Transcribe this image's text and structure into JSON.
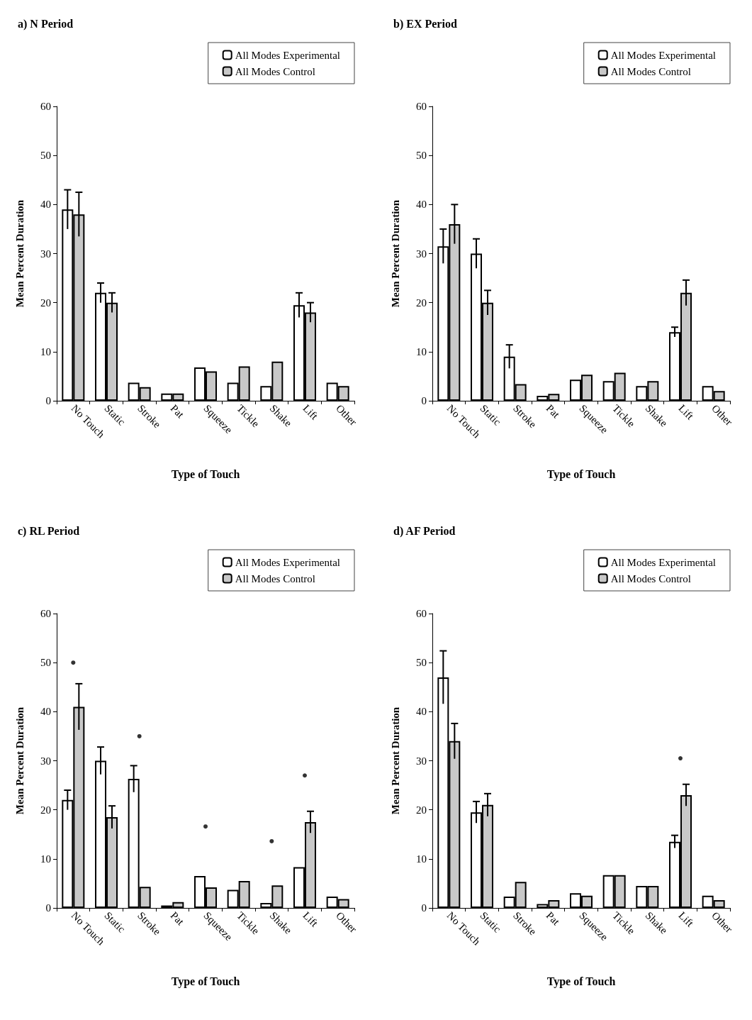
{
  "chart_data": [
    {
      "type": "bar",
      "title": "a) N Period",
      "xlabel": "Type of Touch",
      "ylabel": "Mean Percent Duration",
      "categories": [
        "No Touch",
        "Static",
        "Stroke",
        "Pat",
        "Squeeze",
        "Tickle",
        "Shake",
        "Lift",
        "Other"
      ],
      "series": [
        {
          "name": "All Modes Experimental",
          "color": "#ffffff",
          "values": [
            39,
            22,
            3.7,
            1.5,
            6.8,
            3.7,
            3,
            19.5,
            3.7
          ],
          "errors": [
            4,
            2,
            null,
            null,
            null,
            null,
            null,
            2.5,
            null
          ]
        },
        {
          "name": "All Modes Control",
          "color": "#c8c8c8",
          "values": [
            38,
            20,
            2.8,
            1.5,
            6,
            7,
            8,
            18,
            3
          ],
          "errors": [
            4.5,
            2,
            null,
            null,
            null,
            null,
            null,
            2,
            null
          ]
        }
      ],
      "ylim": [
        0,
        60
      ],
      "yticks": [
        0,
        10,
        20,
        30,
        40,
        50,
        60
      ],
      "grid": false,
      "legend": "top right"
    },
    {
      "type": "bar",
      "title": "b) EX Period",
      "xlabel": "Type of Touch",
      "ylabel": "Mean Percent Duration",
      "categories": [
        "No Touch",
        "Static",
        "Stroke",
        "Pat",
        "Squeeze",
        "Tickle",
        "Shake",
        "Lift",
        "Other"
      ],
      "series": [
        {
          "name": "All Modes Experimental",
          "color": "#ffffff",
          "values": [
            31.5,
            30,
            9,
            1,
            4.3,
            4,
            3,
            14,
            3
          ],
          "errors": [
            3.5,
            3,
            2.4,
            null,
            null,
            null,
            null,
            1,
            null
          ]
        },
        {
          "name": "All Modes Control",
          "color": "#c8c8c8",
          "values": [
            36,
            20,
            3.4,
            1.4,
            5.3,
            5.7,
            4,
            22,
            2
          ],
          "errors": [
            4,
            2.5,
            null,
            null,
            null,
            null,
            null,
            2.6,
            null
          ]
        }
      ],
      "ylim": [
        0,
        60
      ],
      "yticks": [
        0,
        10,
        20,
        30,
        40,
        50,
        60
      ],
      "grid": false,
      "legend": "top right"
    },
    {
      "type": "bar",
      "title": "c) RL Period",
      "xlabel": "Type of Touch",
      "ylabel": "Mean Percent Duration",
      "categories": [
        "No Touch",
        "Static",
        "Stroke",
        "Pat",
        "Squeeze",
        "Tickle",
        "Shake",
        "Lift",
        "Other"
      ],
      "series": [
        {
          "name": "All Modes Experimental",
          "color": "#ffffff",
          "values": [
            22,
            30,
            26.3,
            0.5,
            6.5,
            3.7,
            1,
            8.3,
            2.3
          ],
          "errors": [
            2,
            2.8,
            2.7,
            null,
            null,
            null,
            null,
            null,
            null
          ]
        },
        {
          "name": "All Modes Control",
          "color": "#c8c8c8",
          "values": [
            41,
            18.5,
            4.3,
            1.2,
            4.2,
            5.5,
            4.6,
            17.5,
            1.8
          ],
          "errors": [
            4.7,
            2.3,
            null,
            null,
            null,
            null,
            null,
            2.2,
            null
          ]
        },
        {
          "type": "scatter",
          "color": "#000000",
          "x": [
            "No Touch",
            "Stroke",
            "Squeeze",
            "Shake",
            "Lift"
          ],
          "values": [
            50,
            35,
            16.6,
            13.6,
            27
          ]
        }
      ],
      "marker": "circle",
      "ylim": [
        0,
        60
      ],
      "yticks": [
        0,
        10,
        20,
        30,
        40,
        50,
        60
      ],
      "grid": false,
      "legend": "top right"
    },
    {
      "type": "bar",
      "title": "d) AF Period",
      "xlabel": "Type of Touch",
      "ylabel": "Mean Percent Duration",
      "categories": [
        "No Touch",
        "Static",
        "Stroke",
        "Pat",
        "Squeeze",
        "Tickle",
        "Shake",
        "Lift",
        "Other"
      ],
      "series": [
        {
          "name": "All Modes Experimental",
          "color": "#ffffff",
          "values": [
            47,
            19.5,
            2.3,
            0.8,
            3,
            6.7,
            4.5,
            13.5,
            2.5
          ],
          "errors": [
            5.4,
            2.2,
            null,
            null,
            null,
            null,
            null,
            1.3,
            null
          ]
        },
        {
          "name": "All Modes Control",
          "color": "#c8c8c8",
          "values": [
            34,
            21,
            5.3,
            1.6,
            2.5,
            6.7,
            4.5,
            23,
            1.6
          ],
          "errors": [
            3.6,
            2.3,
            null,
            null,
            null,
            null,
            null,
            2.2,
            null
          ]
        },
        {
          "type": "scatter",
          "color": "#000000",
          "x": [
            "Lift"
          ],
          "values": [
            30.5
          ]
        }
      ],
      "marker": "circle",
      "ylim": [
        0,
        60
      ],
      "yticks": [
        0,
        10,
        20,
        30,
        40,
        50,
        60
      ],
      "grid": false,
      "legend": "top right"
    }
  ]
}
